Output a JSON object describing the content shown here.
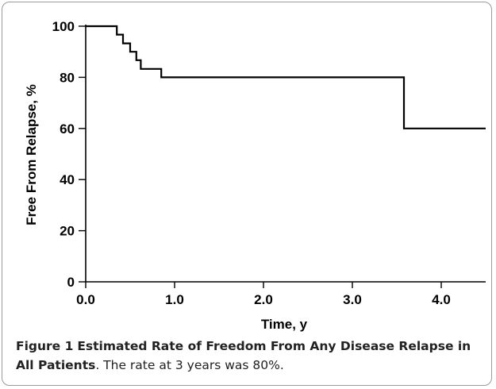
{
  "chart_data": {
    "type": "line",
    "step": true,
    "xlabel": "Time, y",
    "ylabel": "Free From Relapse, %",
    "xlim": [
      0,
      4.5
    ],
    "ylim": [
      0,
      100
    ],
    "xticks": [
      0,
      1,
      2,
      3,
      4
    ],
    "xtick_labels": [
      "0.0",
      "1.0",
      "2.0",
      "3.0",
      "4.0"
    ],
    "yticks": [
      0,
      20,
      40,
      60,
      80,
      100
    ],
    "ytick_labels": [
      "0",
      "20",
      "40",
      "60",
      "80",
      "100"
    ],
    "grid": false,
    "series": [
      {
        "x": [
          0,
          0.35,
          0.35,
          0.42,
          0.42,
          0.5,
          0.5,
          0.57,
          0.57,
          0.62,
          0.62,
          0.67,
          0.67,
          0.85,
          0.85,
          3.58,
          3.58,
          4.5
        ],
        "y": [
          100,
          100,
          96.7,
          96.7,
          93.3,
          93.3,
          90,
          90,
          86.7,
          86.7,
          83.3,
          83.3,
          83.3,
          83.3,
          80,
          80,
          60,
          60
        ]
      }
    ]
  },
  "caption": {
    "label": "Figure 1",
    "title": "Estimated Rate of Freedom From Any Disease Relapse in All Patients",
    "text": ". The rate at 3 years was 80%."
  }
}
